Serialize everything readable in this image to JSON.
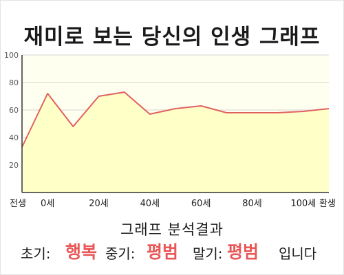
{
  "title": "재미로 보는 당신의 인생 그래프",
  "chart_data": {
    "type": "area",
    "x_tick_labels": [
      "전생",
      "0세",
      "20세",
      "40세",
      "60세",
      "80세",
      "100세",
      "환생"
    ],
    "x": [
      "전생",
      "0세",
      "",
      "20세",
      "",
      "40세",
      "",
      "60세",
      "",
      "80세",
      "",
      "100세",
      "환생"
    ],
    "values": [
      33,
      72,
      48,
      70,
      73,
      57,
      61,
      63,
      58,
      58,
      58,
      59,
      61
    ],
    "ylim": [
      0,
      100
    ],
    "y_ticks": [
      20,
      40,
      60,
      80,
      100
    ],
    "grid": true,
    "colors": {
      "line": "#e06060",
      "fill": "#ffffc8",
      "plot_bg": "#fffff0",
      "grid": "#d6d6d6"
    }
  },
  "analysis": {
    "heading": "그래프 분석결과",
    "early_label": "초기:",
    "early_value": "행복",
    "mid_label": "중기:",
    "mid_value": "평범",
    "late_label": "말기:",
    "late_value": "평범",
    "suffix": "입니다"
  }
}
